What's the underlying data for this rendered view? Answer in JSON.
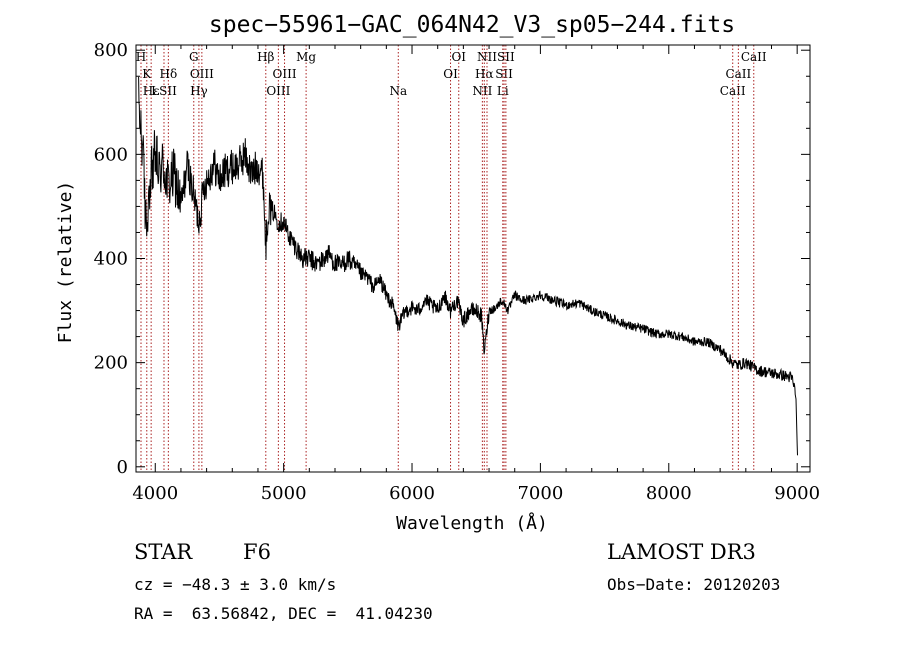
{
  "chart_data": {
    "type": "line",
    "title": "spec−55961−GAC_064N42_V3_sp05−244.fits",
    "xlabel": "Wavelength (Å)",
    "ylabel": "Flux (relative)",
    "xlim": [
      3850,
      9100
    ],
    "ylim": [
      -10,
      810
    ],
    "xticks": [
      4000,
      5000,
      6000,
      7000,
      8000,
      9000
    ],
    "yticks": [
      0,
      200,
      400,
      600,
      800
    ],
    "line_color": "#000000",
    "marker_color": "#aa2222",
    "series": [
      {
        "name": "spectrum",
        "x": [
          3870,
          3900,
          3930,
          3960,
          4000,
          4030,
          4060,
          4100,
          4150,
          4200,
          4250,
          4300,
          4340,
          4380,
          4420,
          4460,
          4500,
          4550,
          4600,
          4650,
          4700,
          4750,
          4800,
          4840,
          4861,
          4880,
          4920,
          4960,
          5000,
          5050,
          5100,
          5150,
          5200,
          5250,
          5300,
          5350,
          5400,
          5450,
          5500,
          5550,
          5600,
          5650,
          5700,
          5750,
          5800,
          5850,
          5893,
          5950,
          6000,
          6050,
          6100,
          6150,
          6200,
          6250,
          6300,
          6350,
          6400,
          6450,
          6500,
          6540,
          6563,
          6600,
          6650,
          6700,
          6750,
          6800,
          6850,
          6900,
          6950,
          7000,
          7100,
          7200,
          7300,
          7400,
          7500,
          7600,
          7700,
          7800,
          7900,
          8000,
          8100,
          8200,
          8300,
          8400,
          8498,
          8542,
          8600,
          8662,
          8700,
          8800,
          8900,
          8960,
          8990,
          9000,
          9005
        ],
        "y": [
          700,
          620,
          450,
          560,
          600,
          560,
          580,
          540,
          560,
          500,
          580,
          520,
          470,
          540,
          560,
          580,
          550,
          570,
          575,
          580,
          600,
          560,
          580,
          560,
          420,
          500,
          490,
          470,
          470,
          440,
          420,
          400,
          400,
          390,
          395,
          410,
          390,
          385,
          400,
          385,
          370,
          365,
          345,
          360,
          330,
          310,
          270,
          300,
          305,
          300,
          320,
          310,
          300,
          330,
          300,
          320,
          280,
          300,
          300,
          290,
          220,
          300,
          305,
          320,
          300,
          330,
          320,
          320,
          325,
          330,
          320,
          310,
          315,
          300,
          290,
          280,
          270,
          265,
          255,
          255,
          250,
          240,
          240,
          225,
          200,
          195,
          200,
          190,
          185,
          180,
          175,
          170,
          140,
          40,
          10
        ]
      }
    ],
    "line_markers": [
      {
        "wavelength": 3889,
        "labels": [
          {
            "text": "H",
            "row": 0
          }
        ]
      },
      {
        "wavelength": 3934,
        "labels": [
          {
            "text": "K",
            "row": 1
          }
        ]
      },
      {
        "wavelength": 3968,
        "labels": [
          {
            "text": "Hε",
            "row": 2
          }
        ]
      },
      {
        "wavelength": 4068,
        "labels": [
          {
            "text": "LSII",
            "row": 2
          }
        ]
      },
      {
        "wavelength": 4102,
        "labels": [
          {
            "text": "Hδ",
            "row": 1
          }
        ]
      },
      {
        "wavelength": 4300,
        "labels": [
          {
            "text": "G",
            "row": 0
          }
        ]
      },
      {
        "wavelength": 4340,
        "labels": [
          {
            "text": "Hγ",
            "row": 2
          }
        ]
      },
      {
        "wavelength": 4363,
        "labels": [
          {
            "text": "OIII",
            "row": 1
          }
        ]
      },
      {
        "wavelength": 4861,
        "labels": [
          {
            "text": "Hβ",
            "row": 0
          }
        ]
      },
      {
        "wavelength": 4959,
        "labels": [
          {
            "text": "OIII",
            "row": 2
          }
        ]
      },
      {
        "wavelength": 5007,
        "labels": [
          {
            "text": "OIII",
            "row": 1
          }
        ]
      },
      {
        "wavelength": 5175,
        "labels": [
          {
            "text": "Mg",
            "row": 0
          }
        ]
      },
      {
        "wavelength": 5893,
        "labels": [
          {
            "text": "Na",
            "row": 2
          }
        ]
      },
      {
        "wavelength": 6300,
        "labels": [
          {
            "text": "OI",
            "row": 1
          }
        ]
      },
      {
        "wavelength": 6364,
        "labels": [
          {
            "text": "OI",
            "row": 0
          }
        ]
      },
      {
        "wavelength": 6548,
        "labels": [
          {
            "text": "NII",
            "row": 2
          }
        ]
      },
      {
        "wavelength": 6563,
        "labels": [
          {
            "text": "Hα",
            "row": 1
          }
        ]
      },
      {
        "wavelength": 6584,
        "labels": [
          {
            "text": "NII",
            "row": 0
          }
        ]
      },
      {
        "wavelength": 6707,
        "labels": [
          {
            "text": "Li",
            "row": 2
          }
        ]
      },
      {
        "wavelength": 6717,
        "labels": [
          {
            "text": "SII",
            "row": 1
          }
        ]
      },
      {
        "wavelength": 6731,
        "labels": [
          {
            "text": "SII",
            "row": 0
          }
        ]
      },
      {
        "wavelength": 8498,
        "labels": [
          {
            "text": "CaII",
            "row": 2
          }
        ]
      },
      {
        "wavelength": 8542,
        "labels": [
          {
            "text": "CaII",
            "row": 1
          }
        ]
      },
      {
        "wavelength": 8662,
        "labels": [
          {
            "text": "CaII",
            "row": 0
          }
        ]
      }
    ]
  },
  "info": {
    "object_class": "STAR",
    "subclass": "F6",
    "survey": "LAMOST DR3",
    "redshift": "cz = −48.3 ± 3.0 km/s",
    "obs_date": "Obs−Date: 20120203",
    "coords": "RA =  63.56842, DEC =  41.04230"
  }
}
